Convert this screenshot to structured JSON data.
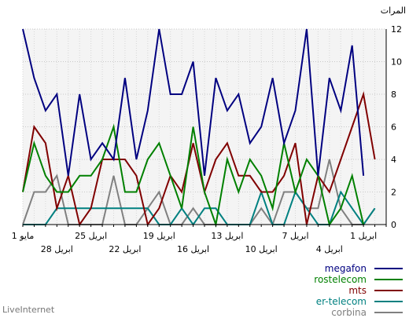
{
  "chart_data": {
    "type": "line",
    "ylabel": "المرات",
    "ylim": [
      0,
      12
    ],
    "yticks": [
      0,
      2,
      4,
      6,
      8,
      10,
      12
    ],
    "x_points": 33,
    "x_ticks_top": [
      {
        "i": 0,
        "label": "1 مايو"
      },
      {
        "i": 6,
        "label": "25 ابريل"
      },
      {
        "i": 12,
        "label": "19 ابريل"
      },
      {
        "i": 18,
        "label": "13 ابريل"
      },
      {
        "i": 24,
        "label": "7 ابريل"
      },
      {
        "i": 30,
        "label": "1 ابريل"
      }
    ],
    "x_ticks_bottom": [
      {
        "i": 3,
        "label": "28 ابريل"
      },
      {
        "i": 9,
        "label": "22 ابريل"
      },
      {
        "i": 15,
        "label": "16 ابريل"
      },
      {
        "i": 21,
        "label": "10 ابريل"
      },
      {
        "i": 27,
        "label": "4 ابريل"
      }
    ],
    "grid": true,
    "legend_position": "bottom-right",
    "series": [
      {
        "name": "megafon",
        "color": "#000080",
        "values": [
          12,
          9,
          7,
          8,
          3,
          8,
          4,
          5,
          4,
          9,
          4,
          7,
          12,
          8,
          8,
          10,
          3,
          9,
          7,
          8,
          5,
          6,
          9,
          5,
          7,
          12,
          3,
          9,
          7,
          11,
          3
        ]
      },
      {
        "name": "rostelecom",
        "color": "#008000",
        "values": [
          2,
          5,
          3,
          2,
          2,
          3,
          3,
          4,
          6,
          2,
          2,
          4,
          5,
          3,
          1,
          6,
          2,
          0,
          4,
          2,
          4,
          3,
          1,
          5,
          2,
          4,
          3,
          0,
          1,
          3,
          0
        ]
      },
      {
        "name": "mts",
        "color": "#800000",
        "values": [
          2,
          6,
          5,
          1,
          3,
          0,
          1,
          4,
          4,
          4,
          3,
          0,
          1,
          3,
          2,
          5,
          2,
          4,
          5,
          3,
          3,
          2,
          2,
          3,
          5,
          0,
          3,
          2,
          4,
          6,
          8,
          4
        ]
      },
      {
        "name": "er-telecom",
        "color": "#008080",
        "values": [
          0,
          0,
          0,
          1,
          1,
          1,
          1,
          1,
          1,
          1,
          1,
          1,
          0,
          0,
          1,
          0,
          1,
          1,
          0,
          0,
          0,
          2,
          0,
          0,
          2,
          1,
          0,
          0,
          2,
          1,
          0,
          1
        ]
      },
      {
        "name": "corbina",
        "color": "#808080",
        "values": [
          0,
          2,
          2,
          3,
          0,
          0,
          0,
          0,
          3,
          0,
          0,
          1,
          2,
          0,
          0,
          1,
          0,
          0,
          0,
          0,
          0,
          1,
          0,
          2,
          2,
          1,
          1,
          4,
          1,
          0,
          0,
          1
        ]
      }
    ]
  },
  "footer": {
    "text": "LiveInternet"
  }
}
